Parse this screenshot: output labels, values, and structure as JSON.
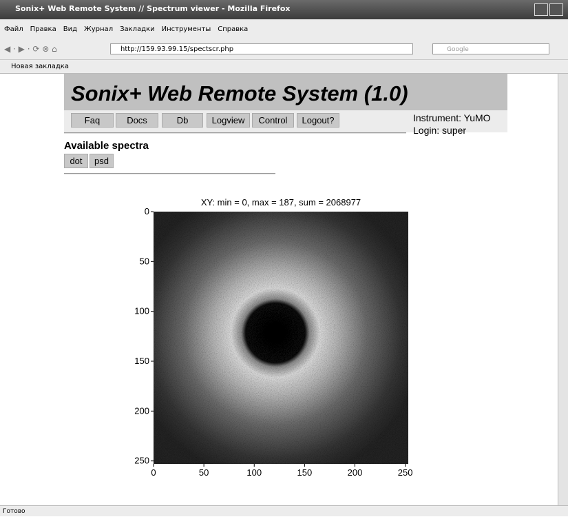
{
  "window": {
    "title": "Sonix+ Web Remote System // Spectrum viewer - Mozilla Firefox"
  },
  "menu": [
    "Файл",
    "Правка",
    "Вид",
    "Журнал",
    "Закладки",
    "Инструменты",
    "Справка"
  ],
  "address": {
    "url": "http://159.93.99.15/spectscr.php",
    "search": "Google"
  },
  "bookmarks": [
    "Новая закладка"
  ],
  "page": {
    "heading": "Sonix+ Web Remote System (1.0)",
    "nav": [
      "Faq",
      "Docs",
      "Db",
      "Logview",
      "Control",
      "Logout?"
    ],
    "instrument": "Instrument: YuMO",
    "login": "Login: super",
    "spectra_heading": "Available spectra",
    "spectra": [
      "dot",
      "psd"
    ]
  },
  "chart_data": {
    "type": "heatmap",
    "title": "XY: min = 0, max = 187, sum = 2068977",
    "xlim": [
      0,
      253
    ],
    "ylim": [
      0,
      253
    ],
    "y_inverted": true,
    "xticks": [
      0,
      50,
      100,
      150,
      200,
      250
    ],
    "yticks": [
      0,
      50,
      100,
      150,
      200,
      250
    ]
  },
  "status": "Готово"
}
